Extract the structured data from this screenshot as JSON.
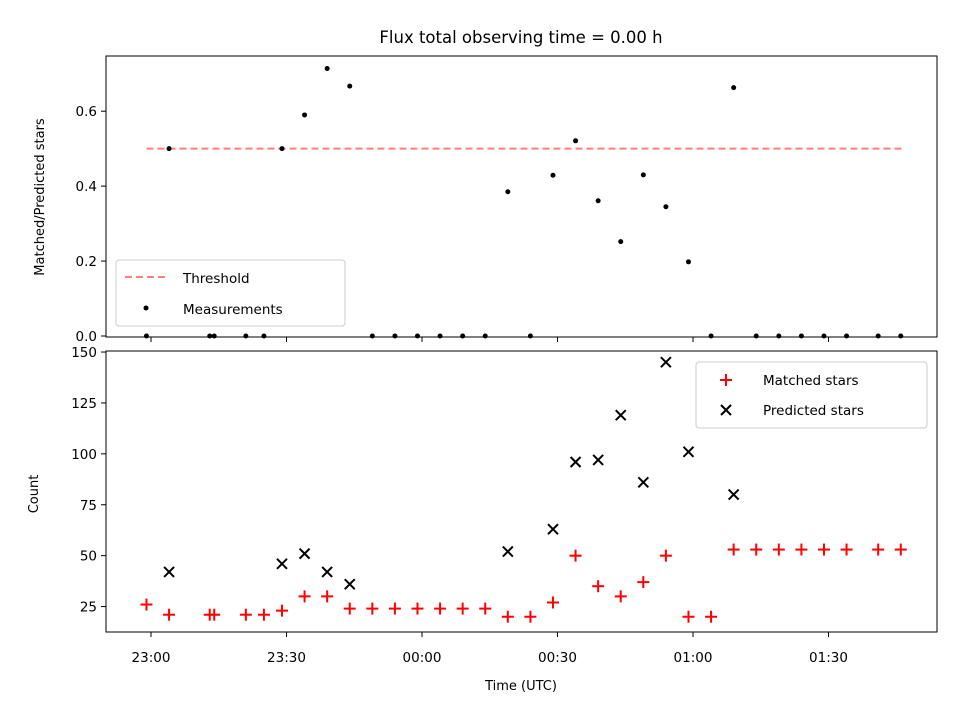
{
  "title": "Flux total observing time = 0.00 h",
  "colors": {
    "threshold": "#ff7f7f",
    "measurements": "#000000",
    "matched": "#ff0000",
    "predicted": "#000000"
  },
  "chart_data": [
    {
      "type": "scatter",
      "panel": "top",
      "title": "Flux total observing time = 0.00 h",
      "ylabel": "Matched/Predicted stars",
      "xlabel": "",
      "ylim": [
        0,
        0.75
      ],
      "yticks": [
        0.0,
        0.2,
        0.4,
        0.6
      ],
      "ytick_labels": [
        "0.0",
        "0.2",
        "0.4",
        "0.6"
      ],
      "legend_position": "lower-left",
      "series": [
        {
          "name": "Threshold",
          "style": "dashed-line",
          "x": [
            "22:59",
            "01:47"
          ],
          "y": [
            0.5,
            0.5
          ]
        },
        {
          "name": "Measurements",
          "style": "dot",
          "x": [
            "22:59",
            "23:04",
            "23:13",
            "23:14",
            "23:21",
            "23:25",
            "23:29",
            "23:34",
            "23:39",
            "23:44",
            "23:49",
            "23:54",
            "23:59",
            "00:04",
            "00:09",
            "00:14",
            "00:19",
            "00:24",
            "00:29",
            "00:34",
            "00:39",
            "00:44",
            "00:49",
            "00:54",
            "00:59",
            "01:04",
            "01:09",
            "01:14",
            "01:19",
            "01:24",
            "01:29",
            "01:34",
            "01:41",
            "01:46"
          ],
          "y": [
            0,
            0.5,
            0,
            0,
            0,
            0,
            0.5,
            0.59,
            0.714,
            0.667,
            0,
            0,
            0,
            0,
            0,
            0,
            0.385,
            0,
            0.429,
            0.521,
            0.361,
            0.252,
            0.43,
            0.345,
            0.198,
            0,
            0.663,
            0,
            0,
            0,
            0,
            0,
            0,
            0
          ]
        }
      ]
    },
    {
      "type": "scatter",
      "panel": "bottom",
      "ylabel": "Count",
      "xlabel": "Time (UTC)",
      "ylim": [
        13,
        151
      ],
      "yticks": [
        25,
        50,
        75,
        100,
        125,
        150
      ],
      "ytick_labels": [
        "25",
        "50",
        "75",
        "100",
        "125",
        "150"
      ],
      "xticks": [
        "23:00",
        "23:30",
        "00:00",
        "00:30",
        "01:00",
        "01:30"
      ],
      "legend_position": "upper-right",
      "series": [
        {
          "name": "Matched stars",
          "marker": "+",
          "x": [
            "22:59",
            "23:04",
            "23:13",
            "23:14",
            "23:21",
            "23:25",
            "23:29",
            "23:34",
            "23:39",
            "23:44",
            "23:49",
            "23:54",
            "23:59",
            "00:04",
            "00:09",
            "00:14",
            "00:19",
            "00:24",
            "00:29",
            "00:34",
            "00:39",
            "00:44",
            "00:49",
            "00:54",
            "00:59",
            "01:04",
            "01:09",
            "01:14",
            "01:19",
            "01:24",
            "01:29",
            "01:34",
            "01:41",
            "01:46"
          ],
          "y": [
            26,
            21,
            21,
            21,
            21,
            21,
            23,
            30,
            30,
            24,
            24,
            24,
            24,
            24,
            24,
            24,
            20,
            20,
            27,
            50,
            35,
            30,
            37,
            50,
            20,
            20,
            53,
            53,
            53,
            53,
            53,
            53,
            53,
            53
          ]
        },
        {
          "name": "Predicted stars",
          "marker": "x",
          "x": [
            "23:04",
            "23:29",
            "23:34",
            "23:39",
            "23:44",
            "00:19",
            "00:29",
            "00:34",
            "00:39",
            "00:44",
            "00:49",
            "00:54",
            "00:59",
            "01:09"
          ],
          "y": [
            42,
            46,
            51,
            42,
            36,
            52,
            63,
            96,
            97,
            119,
            86,
            145,
            101,
            80
          ]
        }
      ]
    }
  ]
}
